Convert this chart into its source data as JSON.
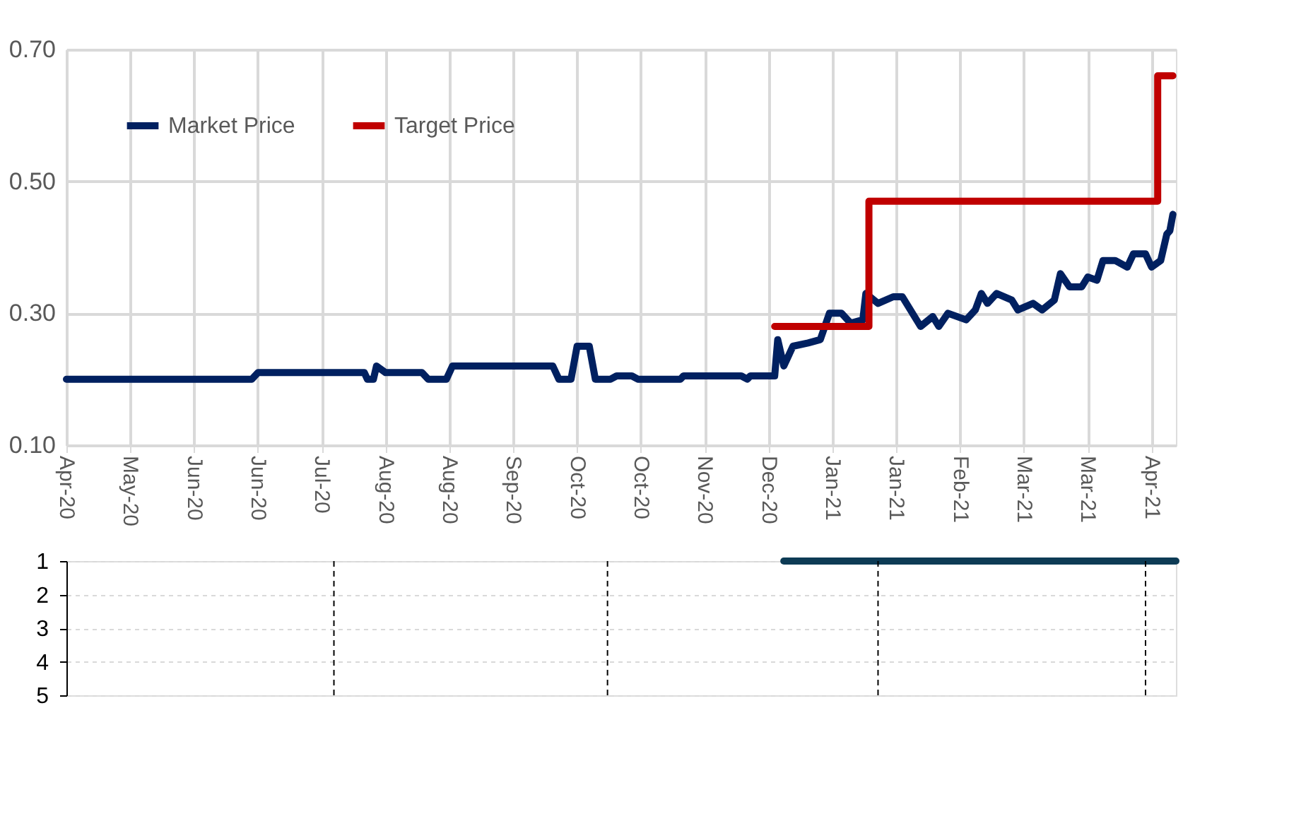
{
  "chart_data": [
    {
      "type": "line",
      "legend": "top left",
      "grid": true,
      "marker": "none",
      "line_style": "solid",
      "xlim": [
        "2020-04-24",
        "2021-04-24"
      ],
      "ylim": [
        0.1,
        0.7
      ],
      "yticks": [
        {
          "value": 0.1,
          "label": "0.10"
        },
        {
          "value": 0.3,
          "label": "0.30"
        },
        {
          "value": 0.5,
          "label": "0.50"
        },
        {
          "value": 0.7,
          "label": "0.70"
        }
      ],
      "xticks": [
        {
          "value": "2020-04-24",
          "label": "Apr-20"
        },
        {
          "value": "2020-05-15",
          "label": "May-20"
        },
        {
          "value": "2020-06-05",
          "label": "Jun-20"
        },
        {
          "value": "2020-06-26",
          "label": "Jun-20"
        },
        {
          "value": "2020-07-17",
          "label": "Jul-20"
        },
        {
          "value": "2020-08-07",
          "label": "Aug-20"
        },
        {
          "value": "2020-08-28",
          "label": "Aug-20"
        },
        {
          "value": "2020-09-18",
          "label": "Sep-20"
        },
        {
          "value": "2020-10-09",
          "label": "Oct-20"
        },
        {
          "value": "2020-10-30",
          "label": "Oct-20"
        },
        {
          "value": "2020-11-20",
          "label": "Nov-20"
        },
        {
          "value": "2020-12-11",
          "label": "Dec-20"
        },
        {
          "value": "2021-01-01",
          "label": "Jan-21"
        },
        {
          "value": "2021-01-22",
          "label": "Jan-21"
        },
        {
          "value": "2021-02-12",
          "label": "Feb-21"
        },
        {
          "value": "2021-03-05",
          "label": "Mar-21"
        },
        {
          "value": "2021-03-26",
          "label": "Mar-21"
        },
        {
          "value": "2021-04-16",
          "label": "Apr-21"
        }
      ],
      "series": [
        {
          "name": "Market Price",
          "color": "#002060",
          "x": [
            "2020-04-24",
            "2020-06-24",
            "2020-06-26",
            "2020-07-31",
            "2020-08-01",
            "2020-08-03",
            "2020-08-04",
            "2020-08-07",
            "2020-08-19",
            "2020-08-21",
            "2020-08-27",
            "2020-08-29",
            "2020-10-01",
            "2020-10-03",
            "2020-10-07",
            "2020-10-09",
            "2020-10-13",
            "2020-10-15",
            "2020-10-20",
            "2020-10-22",
            "2020-10-27",
            "2020-10-29",
            "2020-11-12",
            "2020-11-13",
            "2020-12-02",
            "2020-12-04",
            "2020-12-05",
            "2020-12-13",
            "2020-12-14",
            "2020-12-16",
            "2020-12-19",
            "2020-12-24",
            "2020-12-28",
            "2020-12-31",
            "2021-01-04",
            "2021-01-07",
            "2021-01-11",
            "2021-01-12",
            "2021-01-16",
            "2021-01-21",
            "2021-01-24",
            "2021-01-30",
            "2021-02-03",
            "2021-02-05",
            "2021-02-08",
            "2021-02-14",
            "2021-02-17",
            "2021-02-19",
            "2021-02-21",
            "2021-02-24",
            "2021-03-01",
            "2021-03-03",
            "2021-03-08",
            "2021-03-11",
            "2021-03-15",
            "2021-03-17",
            "2021-03-20",
            "2021-03-24",
            "2021-03-26",
            "2021-03-29",
            "2021-03-31",
            "2021-04-04",
            "2021-04-08",
            "2021-04-10",
            "2021-04-14",
            "2021-04-16",
            "2021-04-19",
            "2021-04-21",
            "2021-04-22",
            "2021-04-23"
          ],
          "values": [
            0.2,
            0.2,
            0.21,
            0.21,
            0.2,
            0.2,
            0.22,
            0.21,
            0.21,
            0.2,
            0.2,
            0.22,
            0.22,
            0.2,
            0.2,
            0.25,
            0.25,
            0.2,
            0.2,
            0.205,
            0.205,
            0.2,
            0.2,
            0.205,
            0.205,
            0.2,
            0.205,
            0.205,
            0.26,
            0.22,
            0.25,
            0.255,
            0.26,
            0.3,
            0.3,
            0.285,
            0.29,
            0.33,
            0.315,
            0.325,
            0.325,
            0.28,
            0.295,
            0.28,
            0.3,
            0.29,
            0.305,
            0.33,
            0.315,
            0.33,
            0.32,
            0.305,
            0.315,
            0.305,
            0.32,
            0.36,
            0.34,
            0.34,
            0.355,
            0.35,
            0.38,
            0.38,
            0.37,
            0.39,
            0.39,
            0.37,
            0.38,
            0.42,
            0.425,
            0.45
          ]
        },
        {
          "name": "Target Price",
          "type": "step",
          "color": "#c00000",
          "x": [
            "2020-12-13",
            "2021-01-13",
            "2021-04-18",
            "2021-04-23"
          ],
          "values": [
            0.28,
            0.47,
            0.66,
            0.66
          ]
        }
      ]
    },
    {
      "type": "line",
      "grid": "y",
      "tick_labels": "y",
      "legend": false,
      "marker": "none",
      "line_style": "solid",
      "xlim": [
        "2020-04-24",
        "2021-04-24"
      ],
      "ylim": [
        5,
        1
      ],
      "yticks": [
        1,
        2,
        3,
        4,
        5
      ],
      "series": [
        {
          "color": "#0d3b55",
          "x": [
            "2020-12-16",
            "2021-04-24"
          ],
          "values": [
            1,
            1
          ]
        }
      ],
      "ref_lines": [
        {
          "axis": "x",
          "value": "2020-07-21",
          "color": "#000000",
          "line_style": "dashed"
        },
        {
          "axis": "x",
          "value": "2020-10-19",
          "color": "#000000",
          "line_style": "dashed"
        },
        {
          "axis": "x",
          "value": "2021-01-16",
          "color": "#000000",
          "line_style": "dashed"
        },
        {
          "axis": "x",
          "value": "2021-04-14",
          "color": "#000000",
          "line_style": "dashed"
        }
      ]
    }
  ]
}
